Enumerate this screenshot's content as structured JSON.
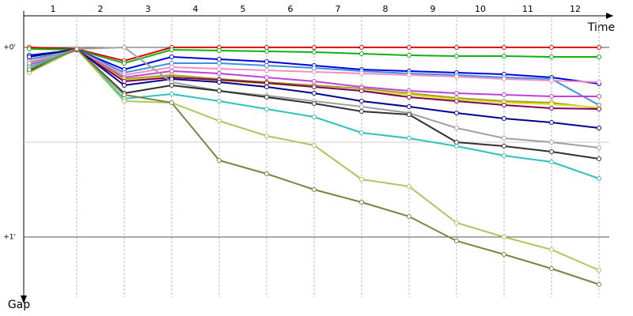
{
  "chart_data": {
    "type": "line",
    "x_label": "Time",
    "y_label": "Gap",
    "x": [
      0,
      1,
      2,
      3,
      4,
      5,
      6,
      7,
      8,
      9,
      10,
      11,
      12
    ],
    "xlim": [
      0,
      12.3
    ],
    "xticks": [
      {
        "value": 0.5,
        "label": "1"
      },
      {
        "value": 1.5,
        "label": "2"
      },
      {
        "value": 2.5,
        "label": "3"
      },
      {
        "value": 3.5,
        "label": "4"
      },
      {
        "value": 4.5,
        "label": "5"
      },
      {
        "value": 5.5,
        "label": "6"
      },
      {
        "value": 6.5,
        "label": "7"
      },
      {
        "value": 7.5,
        "label": "8"
      },
      {
        "value": 8.5,
        "label": "9"
      },
      {
        "value": 9.5,
        "label": "10"
      },
      {
        "value": 10.5,
        "label": "11"
      },
      {
        "value": 11.5,
        "label": "12"
      }
    ],
    "ylim": [
      -10,
      79
    ],
    "yticks": [
      {
        "value": 0,
        "label": "+0'"
      },
      {
        "value": 60,
        "label": "+1'"
      }
    ],
    "minor_yticks": [
      30
    ],
    "inverted_y": true,
    "series": [
      {
        "color": "#e00000",
        "values": [
          0,
          0.5,
          4.25,
          0,
          0,
          0,
          0,
          0,
          0,
          0,
          0,
          0,
          0
        ]
      },
      {
        "color": "#10b010",
        "values": [
          0.5,
          0.75,
          5,
          0.75,
          1,
          1.25,
          1.5,
          2,
          2.5,
          2.75,
          2.75,
          3,
          3
        ]
      },
      {
        "color": "#0000e0",
        "values": [
          2.5,
          0.75,
          7,
          3,
          3.75,
          4.5,
          5.75,
          7,
          7.5,
          8,
          8.5,
          9.5,
          11.5
        ]
      },
      {
        "color": "#4090e0",
        "values": [
          3.75,
          0.75,
          8,
          5,
          5,
          5.75,
          6.5,
          7.5,
          8.25,
          8.75,
          9.5,
          10,
          18.25
        ]
      },
      {
        "color": "#f090c0",
        "values": [
          4.5,
          0.75,
          8.75,
          6.25,
          6.75,
          7.25,
          7.75,
          8.25,
          8.75,
          9.25,
          10,
          10.5,
          11
        ]
      },
      {
        "color": "#c040e0",
        "values": [
          5.5,
          0.75,
          9.5,
          7.5,
          8.25,
          9.5,
          10.75,
          12.5,
          13.75,
          14.5,
          15,
          15.5,
          15.5
        ]
      },
      {
        "color": "#a0a020",
        "values": [
          6.25,
          0.75,
          10,
          8.75,
          10,
          11,
          12,
          13,
          14.5,
          16,
          17,
          17.5,
          19.25
        ]
      },
      {
        "color": "#e0e020",
        "values": [
          5,
          0.75,
          10.5,
          9.25,
          10.5,
          11.5,
          12.5,
          13.75,
          15,
          16.5,
          17.5,
          18,
          19
        ]
      },
      {
        "color": "#800060",
        "values": [
          7,
          0.75,
          10.75,
          9.5,
          10.25,
          11.25,
          12.5,
          13.75,
          15.75,
          17,
          18.25,
          19.25,
          19.5
        ]
      },
      {
        "color": "#000090",
        "values": [
          3,
          0.5,
          12,
          10,
          11,
          12.5,
          14.5,
          17,
          18.75,
          20.75,
          22.5,
          23.75,
          25.5
        ]
      },
      {
        "color": "#a0a0a0",
        "values": [
          5,
          0.5,
          0,
          11,
          13.75,
          15.25,
          17,
          18.75,
          20.75,
          25.5,
          28.75,
          30,
          31.75
        ]
      },
      {
        "color": "#303030",
        "values": [
          7.5,
          0.5,
          14.5,
          12,
          13.75,
          15.75,
          17.75,
          20.25,
          21.25,
          30,
          31.25,
          33,
          35.25
        ]
      },
      {
        "color": "#30c0c0",
        "values": [
          6.25,
          0.5,
          16.25,
          14.75,
          17,
          19.5,
          22,
          27,
          28.75,
          31.25,
          34.25,
          36.25,
          41.5
        ]
      },
      {
        "color": "#a8c860",
        "values": [
          8,
          0.5,
          17,
          17.5,
          23.25,
          28,
          31,
          41.75,
          44,
          55.5,
          60,
          64,
          70.5
        ]
      },
      {
        "color": "#808040",
        "values": [
          7,
          0.5,
          15,
          17.5,
          35.75,
          40,
          45,
          49,
          53.5,
          61.25,
          65.5,
          70,
          75
        ]
      }
    ]
  }
}
